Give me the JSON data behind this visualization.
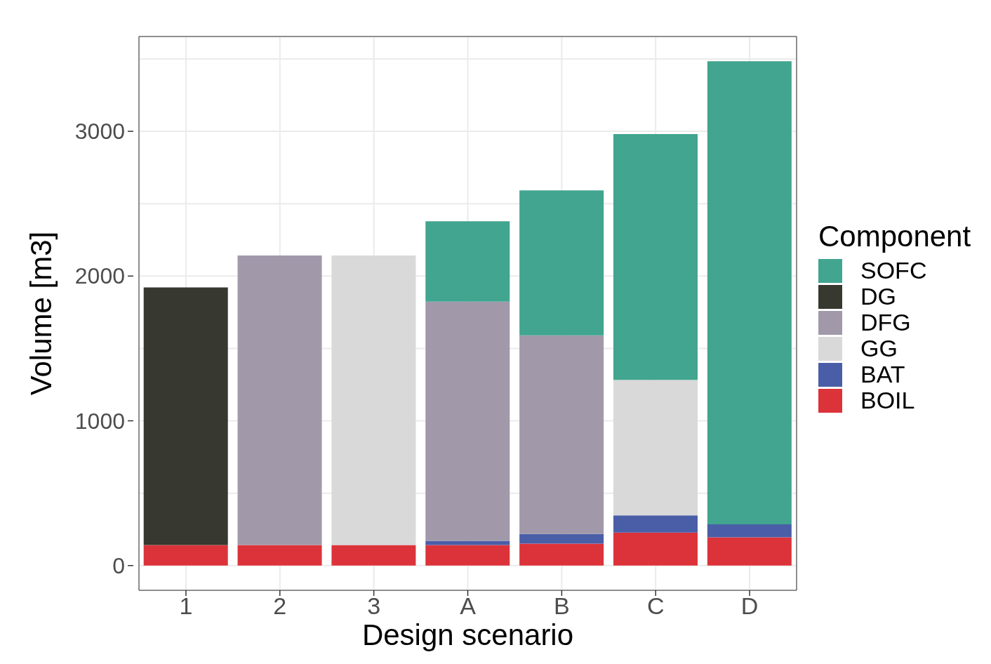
{
  "chart_data": {
    "type": "bar",
    "xlabel": "Design scenario",
    "ylabel": "Volume [m3]",
    "legend_title": "Component",
    "categories": [
      "1",
      "2",
      "3",
      "A",
      "B",
      "C",
      "D"
    ],
    "series": [
      {
        "name": "BOIL",
        "color": "#dc333a",
        "values": [
          142,
          142,
          142,
          142,
          152,
          228,
          195
        ]
      },
      {
        "name": "BAT",
        "color": "#4a5ea8",
        "values": [
          0,
          0,
          0,
          29,
          66,
          119,
          90
        ]
      },
      {
        "name": "GG",
        "color": "#d9d9d9",
        "values": [
          0,
          0,
          2000,
          0,
          0,
          935,
          0
        ]
      },
      {
        "name": "DFG",
        "color": "#a199aa",
        "values": [
          0,
          2000,
          0,
          1652,
          1372,
          0,
          0
        ]
      },
      {
        "name": "DG",
        "color": "#373830",
        "values": [
          1780,
          0,
          0,
          0,
          0,
          0,
          0
        ]
      },
      {
        "name": "SOFC",
        "color": "#41a58f",
        "values": [
          0,
          0,
          0,
          555,
          1002,
          1699,
          3199
        ]
      }
    ],
    "stacked": true,
    "ylim": [
      -171,
      3655
    ],
    "yticks": [
      0,
      {
        "value": 500,
        "label": null
      },
      1000,
      {
        "value": 1500,
        "label": null
      },
      2000,
      {
        "value": 2500,
        "label": null
      },
      3000,
      {
        "value": 3500,
        "label": null
      }
    ],
    "grid": true,
    "legend": "right"
  }
}
